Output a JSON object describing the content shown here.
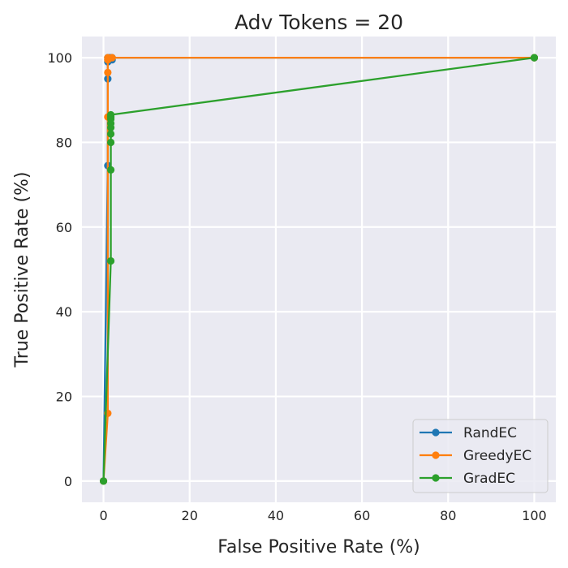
{
  "chart_data": {
    "type": "line",
    "title": "Adv Tokens = 20",
    "xlabel": "False Positive Rate (%)",
    "ylabel": "True Positive Rate (%)",
    "xlim": [
      -5,
      105
    ],
    "ylim": [
      -5,
      105
    ],
    "xticks": [
      0,
      20,
      40,
      60,
      80,
      100
    ],
    "yticks": [
      0,
      20,
      40,
      60,
      80,
      100
    ],
    "grid": true,
    "legend_position": "lower-right",
    "colors": {
      "background": "#EAEAF2",
      "grid": "#FFFFFF"
    },
    "series": [
      {
        "name": "RandEC",
        "color": "#1F77B4",
        "points": [
          [
            0,
            0
          ],
          [
            1,
            74.5
          ],
          [
            1,
            95
          ],
          [
            1,
            99
          ],
          [
            1,
            99.5
          ],
          [
            1,
            100
          ],
          [
            1.5,
            100
          ],
          [
            2,
            99.5
          ],
          [
            2,
            100
          ],
          [
            100,
            100
          ]
        ]
      },
      {
        "name": "GreedyEC",
        "color": "#FF7F0E",
        "points": [
          [
            0,
            0
          ],
          [
            1,
            16
          ],
          [
            1,
            86
          ],
          [
            1,
            96.5
          ],
          [
            1,
            99.5
          ],
          [
            1,
            100
          ],
          [
            2,
            100
          ],
          [
            100,
            100
          ]
        ]
      },
      {
        "name": "GradEC",
        "color": "#2CA02C",
        "points": [
          [
            0,
            0
          ],
          [
            1.7,
            52
          ],
          [
            1.7,
            73.5
          ],
          [
            1.7,
            80
          ],
          [
            1.7,
            82
          ],
          [
            1.7,
            83.5
          ],
          [
            1.7,
            84.5
          ],
          [
            1.7,
            85.5
          ],
          [
            1.7,
            86
          ],
          [
            1.7,
            86.5
          ],
          [
            100,
            100
          ]
        ]
      }
    ]
  }
}
